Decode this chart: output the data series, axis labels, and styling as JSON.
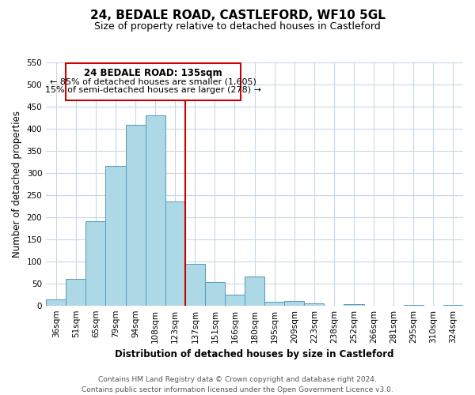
{
  "title": "24, BEDALE ROAD, CASTLEFORD, WF10 5GL",
  "subtitle": "Size of property relative to detached houses in Castleford",
  "xlabel": "Distribution of detached houses by size in Castleford",
  "ylabel": "Number of detached properties",
  "footer_line1": "Contains HM Land Registry data © Crown copyright and database right 2024.",
  "footer_line2": "Contains public sector information licensed under the Open Government Licence v3.0.",
  "bar_labels": [
    "36sqm",
    "51sqm",
    "65sqm",
    "79sqm",
    "94sqm",
    "108sqm",
    "123sqm",
    "137sqm",
    "151sqm",
    "166sqm",
    "180sqm",
    "195sqm",
    "209sqm",
    "223sqm",
    "238sqm",
    "252sqm",
    "266sqm",
    "281sqm",
    "295sqm",
    "310sqm",
    "324sqm"
  ],
  "bar_values": [
    13,
    60,
    190,
    315,
    408,
    430,
    235,
    95,
    53,
    25,
    65,
    8,
    10,
    5,
    0,
    3,
    0,
    0,
    2,
    0,
    2
  ],
  "bar_color": "#add8e6",
  "bar_edge_color": "#5599bb",
  "vline_color": "#cc0000",
  "ylim": [
    0,
    550
  ],
  "yticks": [
    0,
    50,
    100,
    150,
    200,
    250,
    300,
    350,
    400,
    450,
    500,
    550
  ],
  "annotation_title": "24 BEDALE ROAD: 135sqm",
  "annotation_line1": "← 85% of detached houses are smaller (1,605)",
  "annotation_line2": "15% of semi-detached houses are larger (278) →",
  "box_edge_color": "#cc0000",
  "grid_color": "#c8d8e8",
  "background_color": "#ffffff",
  "title_fontsize": 11,
  "subtitle_fontsize": 9,
  "label_fontsize": 8.5,
  "tick_fontsize": 7.5,
  "footer_fontsize": 6.5,
  "annotation_title_fontsize": 8.5,
  "annotation_text_fontsize": 8
}
